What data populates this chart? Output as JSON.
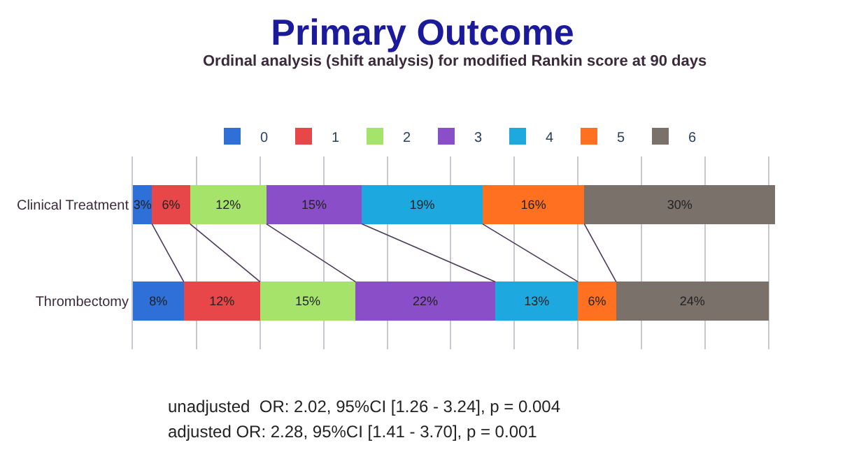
{
  "chart_data": {
    "type": "bar",
    "orientation": "horizontal",
    "stacked": true,
    "title": "Primary Outcome",
    "subtitle": "Ordinal analysis (shift analysis) for modified Rankin score at 90 days",
    "categories": [
      "Clinical Treatment",
      "Thrombectomy"
    ],
    "series": [
      {
        "name": "0",
        "color": "#2e6fd8",
        "values": [
          3,
          8
        ],
        "value_labels": [
          "3%",
          "8%"
        ]
      },
      {
        "name": "1",
        "color": "#e8474a",
        "values": [
          6,
          12
        ],
        "value_labels": [
          "6%",
          "12%"
        ]
      },
      {
        "name": "2",
        "color": "#a6e36a",
        "values": [
          12,
          15
        ],
        "value_labels": [
          "12%",
          "15%"
        ]
      },
      {
        "name": "3",
        "color": "#8a4fc8",
        "values": [
          15,
          22
        ],
        "value_labels": [
          "15%",
          "22%"
        ]
      },
      {
        "name": "4",
        "color": "#1ea8e0",
        "values": [
          19,
          13
        ],
        "value_labels": [
          "19%",
          "13%"
        ]
      },
      {
        "name": "5",
        "color": "#ff7020",
        "values": [
          16,
          6
        ],
        "value_labels": [
          "16%",
          "6%"
        ]
      },
      {
        "name": "6",
        "color": "#7a716b",
        "values": [
          30,
          24
        ],
        "value_labels": [
          "30%",
          "24%"
        ]
      }
    ],
    "xlim": [
      0,
      101
    ],
    "xticks": [
      {
        "value": 0,
        "label": null
      },
      {
        "value": 10,
        "label": null
      },
      {
        "value": 20,
        "label": null
      },
      {
        "value": 30,
        "label": null
      },
      {
        "value": 40,
        "label": null
      },
      {
        "value": 50,
        "label": null
      },
      {
        "value": 60,
        "label": null
      },
      {
        "value": 70,
        "label": null
      },
      {
        "value": 80,
        "label": null
      },
      {
        "value": 90,
        "label": null
      },
      {
        "value": 100,
        "label": null
      }
    ],
    "tick_labels": "y",
    "grid": "x",
    "legend": "top",
    "annotations": [
      "unadjusted  OR: 2.02, 95%CI [1.26 - 3.24], p = 0.004",
      "adjusted OR: 2.28, 95%CI [1.41 - 3.70], p = 0.001"
    ]
  }
}
